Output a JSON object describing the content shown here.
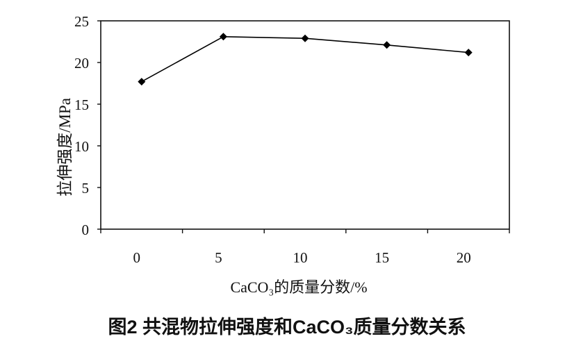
{
  "chart_data": {
    "type": "line",
    "x": [
      0,
      5,
      10,
      15,
      20
    ],
    "series": [
      {
        "values": [
          17.7,
          23.1,
          22.9,
          22.1,
          21.2
        ],
        "marker": "diamond",
        "color": "#000000"
      }
    ],
    "xlabel": "CaCO₃的质量分数/%",
    "ylabel": "拉伸强度/MPa",
    "ylim": [
      0,
      25
    ],
    "yticks": [
      0,
      5,
      10,
      15,
      20,
      25
    ],
    "grid": false,
    "legend": "none"
  },
  "caption": "图2 共混物拉伸强度和CaCO₃质量分数关系"
}
